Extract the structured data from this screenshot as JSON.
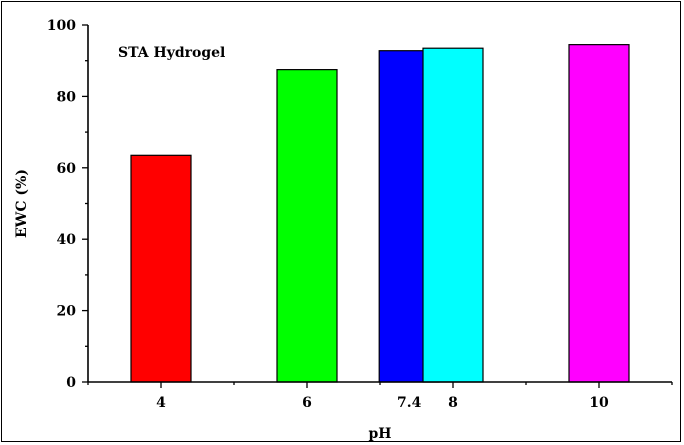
{
  "chart_data": {
    "type": "bar",
    "title": "",
    "annotation": "STA Hydrogel",
    "xlabel": "pH",
    "ylabel": "EWC (%)",
    "x": [
      4,
      6,
      7.4,
      8,
      10
    ],
    "x_tick_labels": [
      "4",
      "6",
      "7.4",
      "8",
      "10"
    ],
    "values": [
      63.5,
      87.5,
      92.8,
      93.5,
      94.5
    ],
    "colors": [
      "#ff0000",
      "#00ff00",
      "#0000ff",
      "#00ffff",
      "#ff00ff"
    ],
    "xlim": [
      3,
      11
    ],
    "ylim": [
      0,
      100
    ],
    "y_ticks": [
      0,
      20,
      40,
      60,
      80,
      100
    ],
    "grid": false,
    "legend": "none"
  }
}
